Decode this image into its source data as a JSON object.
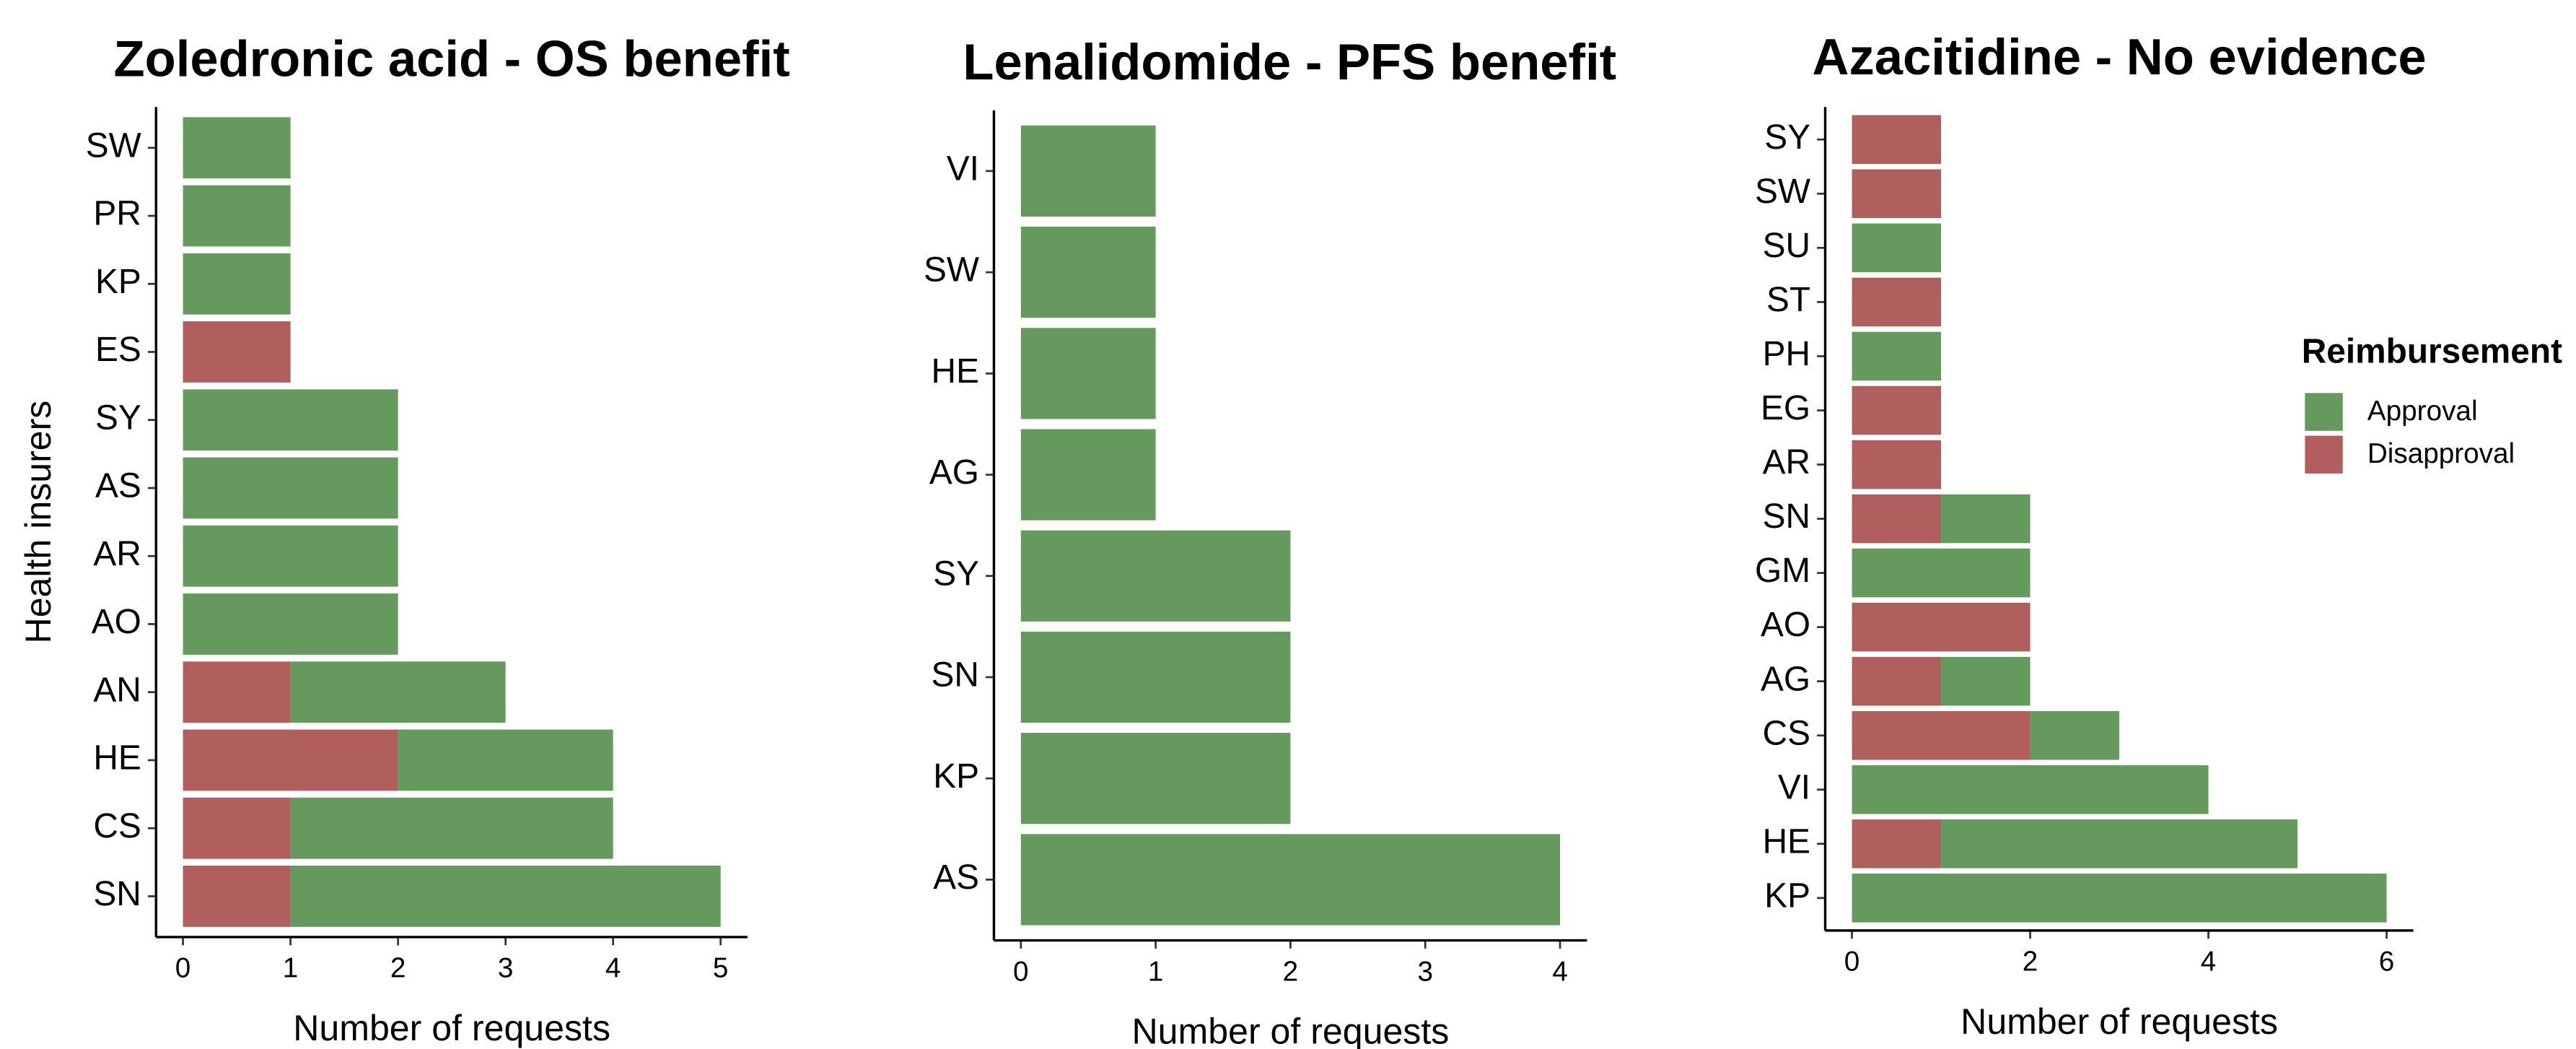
{
  "chart_data": [
    {
      "type": "bar",
      "orientation": "horizontal",
      "stacked": true,
      "title": "Zoledronic acid - OS benefit",
      "x_label": "Number of requests",
      "y_label": "Health insurers",
      "categories": [
        "SW",
        "PR",
        "KP",
        "ES",
        "SY",
        "AS",
        "AR",
        "AO",
        "AN",
        "HE",
        "CS",
        "SN"
      ],
      "series": [
        {
          "name": "Approval",
          "color": "#66995e",
          "values": [
            1,
            1,
            1,
            0,
            2,
            2,
            2,
            2,
            2,
            2,
            3,
            4
          ]
        },
        {
          "name": "Disapproval",
          "color": "#b05e5e",
          "values": [
            0,
            0,
            0,
            1,
            0,
            0,
            0,
            0,
            1,
            2,
            1,
            1
          ]
        }
      ],
      "xlim": [
        -0.25,
        5.25
      ],
      "xticks": [
        0,
        1,
        2,
        3,
        4,
        5
      ]
    },
    {
      "type": "bar",
      "orientation": "horizontal",
      "stacked": true,
      "title": "Lenalidomide - PFS benefit",
      "x_label": "Number of requests",
      "categories": [
        "VI",
        "SW",
        "HE",
        "AG",
        "SY",
        "SN",
        "KP",
        "AS"
      ],
      "series": [
        {
          "name": "Approval",
          "color": "#66995e",
          "values": [
            1,
            1,
            1,
            1,
            2,
            2,
            2,
            4
          ]
        }
      ],
      "xlim": [
        -0.2,
        4.2
      ],
      "xticks": [
        0,
        1,
        2,
        3,
        4
      ]
    },
    {
      "type": "bar",
      "orientation": "horizontal",
      "stacked": true,
      "title": "Azacitidine - No evidence",
      "x_label": "Number of requests",
      "categories": [
        "SY",
        "SW",
        "SU",
        "ST",
        "PH",
        "EG",
        "AR",
        "SN",
        "GM",
        "AO",
        "AG",
        "CS",
        "VI",
        "HE",
        "KP"
      ],
      "series": [
        {
          "name": "Approval",
          "color": "#66995e",
          "values": [
            0,
            0,
            1,
            0,
            1,
            0,
            0,
            1,
            2,
            0,
            1,
            1,
            4,
            4,
            6
          ]
        },
        {
          "name": "Disapproval",
          "color": "#b05e5e",
          "values": [
            1,
            1,
            0,
            1,
            0,
            1,
            1,
            1,
            0,
            2,
            1,
            2,
            0,
            1,
            0
          ]
        }
      ],
      "xlim": [
        -0.3,
        6.3
      ],
      "xticks": [
        0,
        2,
        4,
        6
      ],
      "legend": "right",
      "legend_title": "Reimbursement"
    }
  ]
}
